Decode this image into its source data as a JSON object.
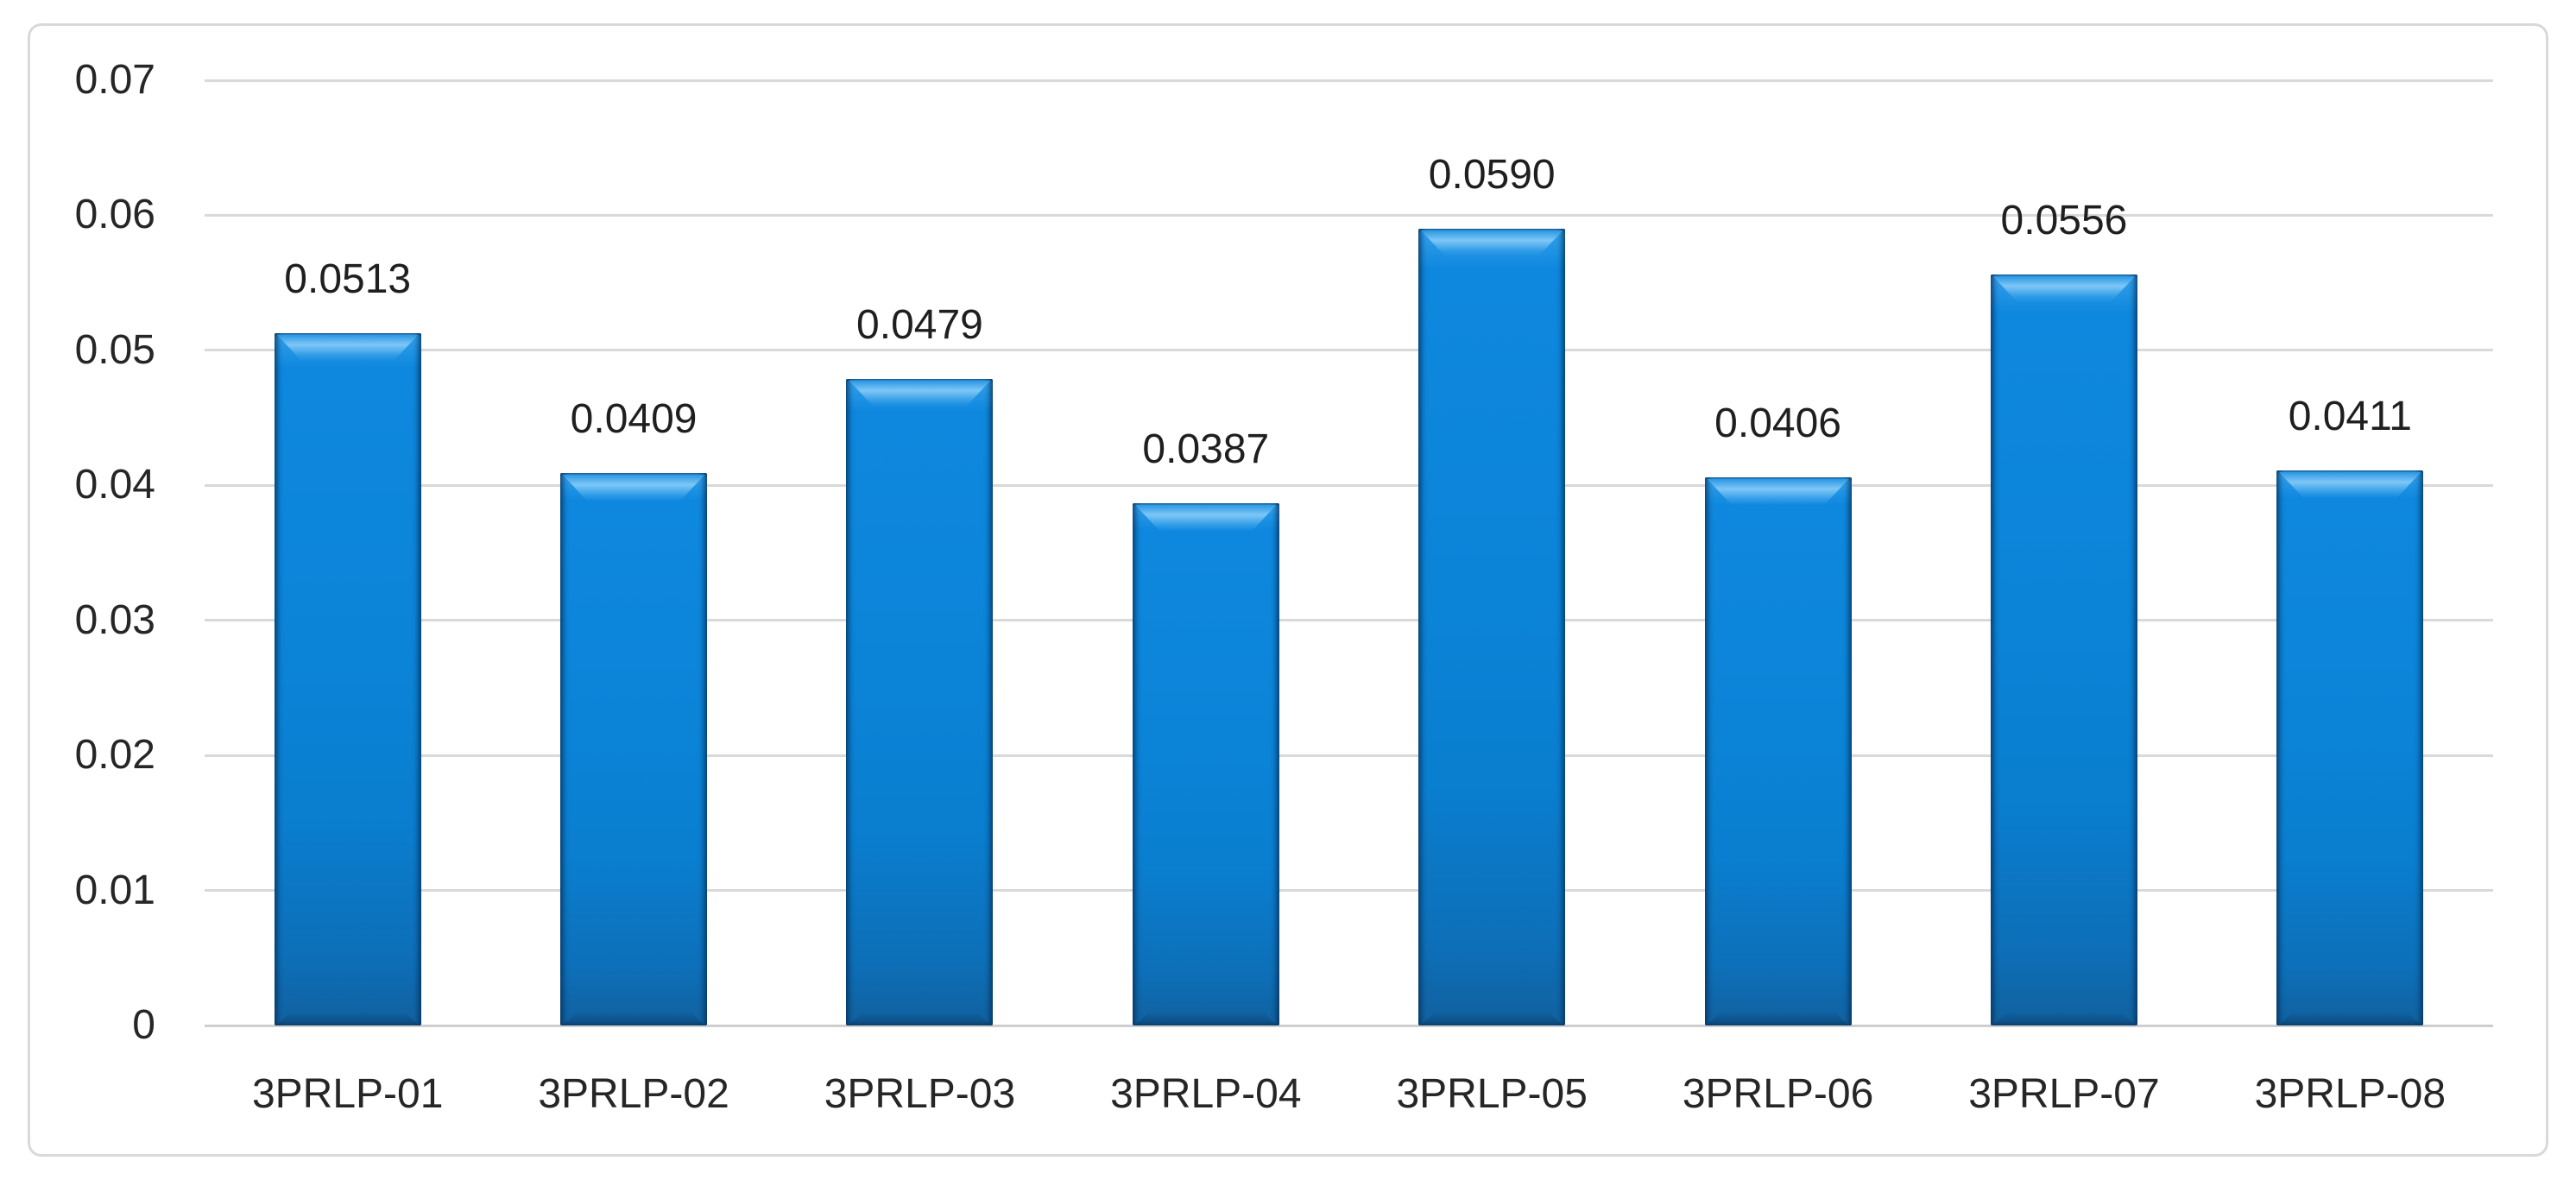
{
  "chart_data": {
    "type": "bar",
    "title": "",
    "xlabel": "",
    "ylabel": "",
    "categories": [
      "3PRLP-01",
      "3PRLP-02",
      "3PRLP-03",
      "3PRLP-04",
      "3PRLP-05",
      "3PRLP-06",
      "3PRLP-07",
      "3PRLP-08"
    ],
    "values": [
      0.0513,
      0.0409,
      0.0479,
      0.0387,
      0.059,
      0.0406,
      0.0556,
      0.0411
    ],
    "value_labels": [
      "0.0513",
      "0.0409",
      "0.0479",
      "0.0387",
      "0.0590",
      "0.0406",
      "0.0556",
      "0.0411"
    ],
    "ylim": [
      0,
      0.07
    ],
    "yticks": [
      {
        "value": 0.07,
        "label": "0.07"
      },
      {
        "value": 0.06,
        "label": "0.06"
      },
      {
        "value": 0.05,
        "label": "0.05"
      },
      {
        "value": 0.04,
        "label": "0.04"
      },
      {
        "value": 0.03,
        "label": "0.03"
      },
      {
        "value": 0.02,
        "label": "0.02"
      },
      {
        "value": 0.01,
        "label": "0.01"
      },
      {
        "value": 0,
        "label": "0"
      }
    ],
    "grid": true,
    "legend": "none",
    "colors": {
      "bar_fill": "#0b84d8",
      "bar_edge": "#0a3f6e",
      "bar_highlight": "#7ec7f6",
      "gridline": "#d9d9d9",
      "axis_line": "#cfcfcf",
      "text": "#262626",
      "frame_border": "#d9d9d9",
      "background": "#ffffff"
    }
  }
}
